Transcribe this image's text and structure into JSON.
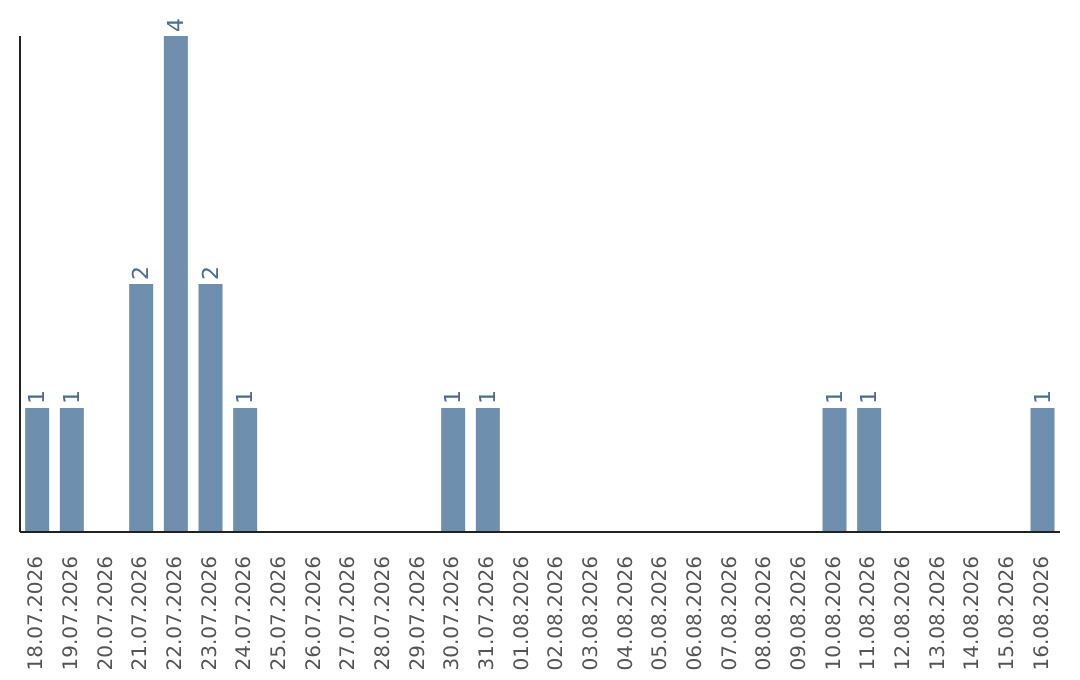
{
  "chart_data": {
    "type": "bar",
    "categories": [
      "18.07.2026",
      "19.07.2026",
      "20.07.2026",
      "21.07.2026",
      "22.07.2026",
      "23.07.2026",
      "24.07.2026",
      "25.07.2026",
      "26.07.2026",
      "27.07.2026",
      "28.07.2026",
      "29.07.2026",
      "30.07.2026",
      "31.07.2026",
      "01.08.2026",
      "02.08.2026",
      "03.08.2026",
      "04.08.2026",
      "05.08.2026",
      "06.08.2026",
      "07.08.2026",
      "08.08.2026",
      "09.08.2026",
      "10.08.2026",
      "11.08.2026",
      "12.08.2026",
      "13.08.2026",
      "14.08.2026",
      "15.08.2026",
      "16.08.2026"
    ],
    "values": [
      1,
      1,
      0,
      2,
      4,
      2,
      1,
      0,
      0,
      0,
      0,
      0,
      1,
      1,
      0,
      0,
      0,
      0,
      0,
      0,
      0,
      0,
      0,
      1,
      1,
      0,
      0,
      0,
      0,
      1
    ],
    "value_labels": [
      "1",
      "1",
      null,
      "2",
      "4",
      "2",
      "1",
      null,
      null,
      null,
      null,
      null,
      "1",
      "1",
      null,
      null,
      null,
      null,
      null,
      null,
      null,
      null,
      null,
      "1",
      "1",
      null,
      null,
      null,
      null,
      "1"
    ],
    "color": "#6e8fae",
    "ylim": [
      0,
      4
    ],
    "grid": false,
    "legend": false
  }
}
